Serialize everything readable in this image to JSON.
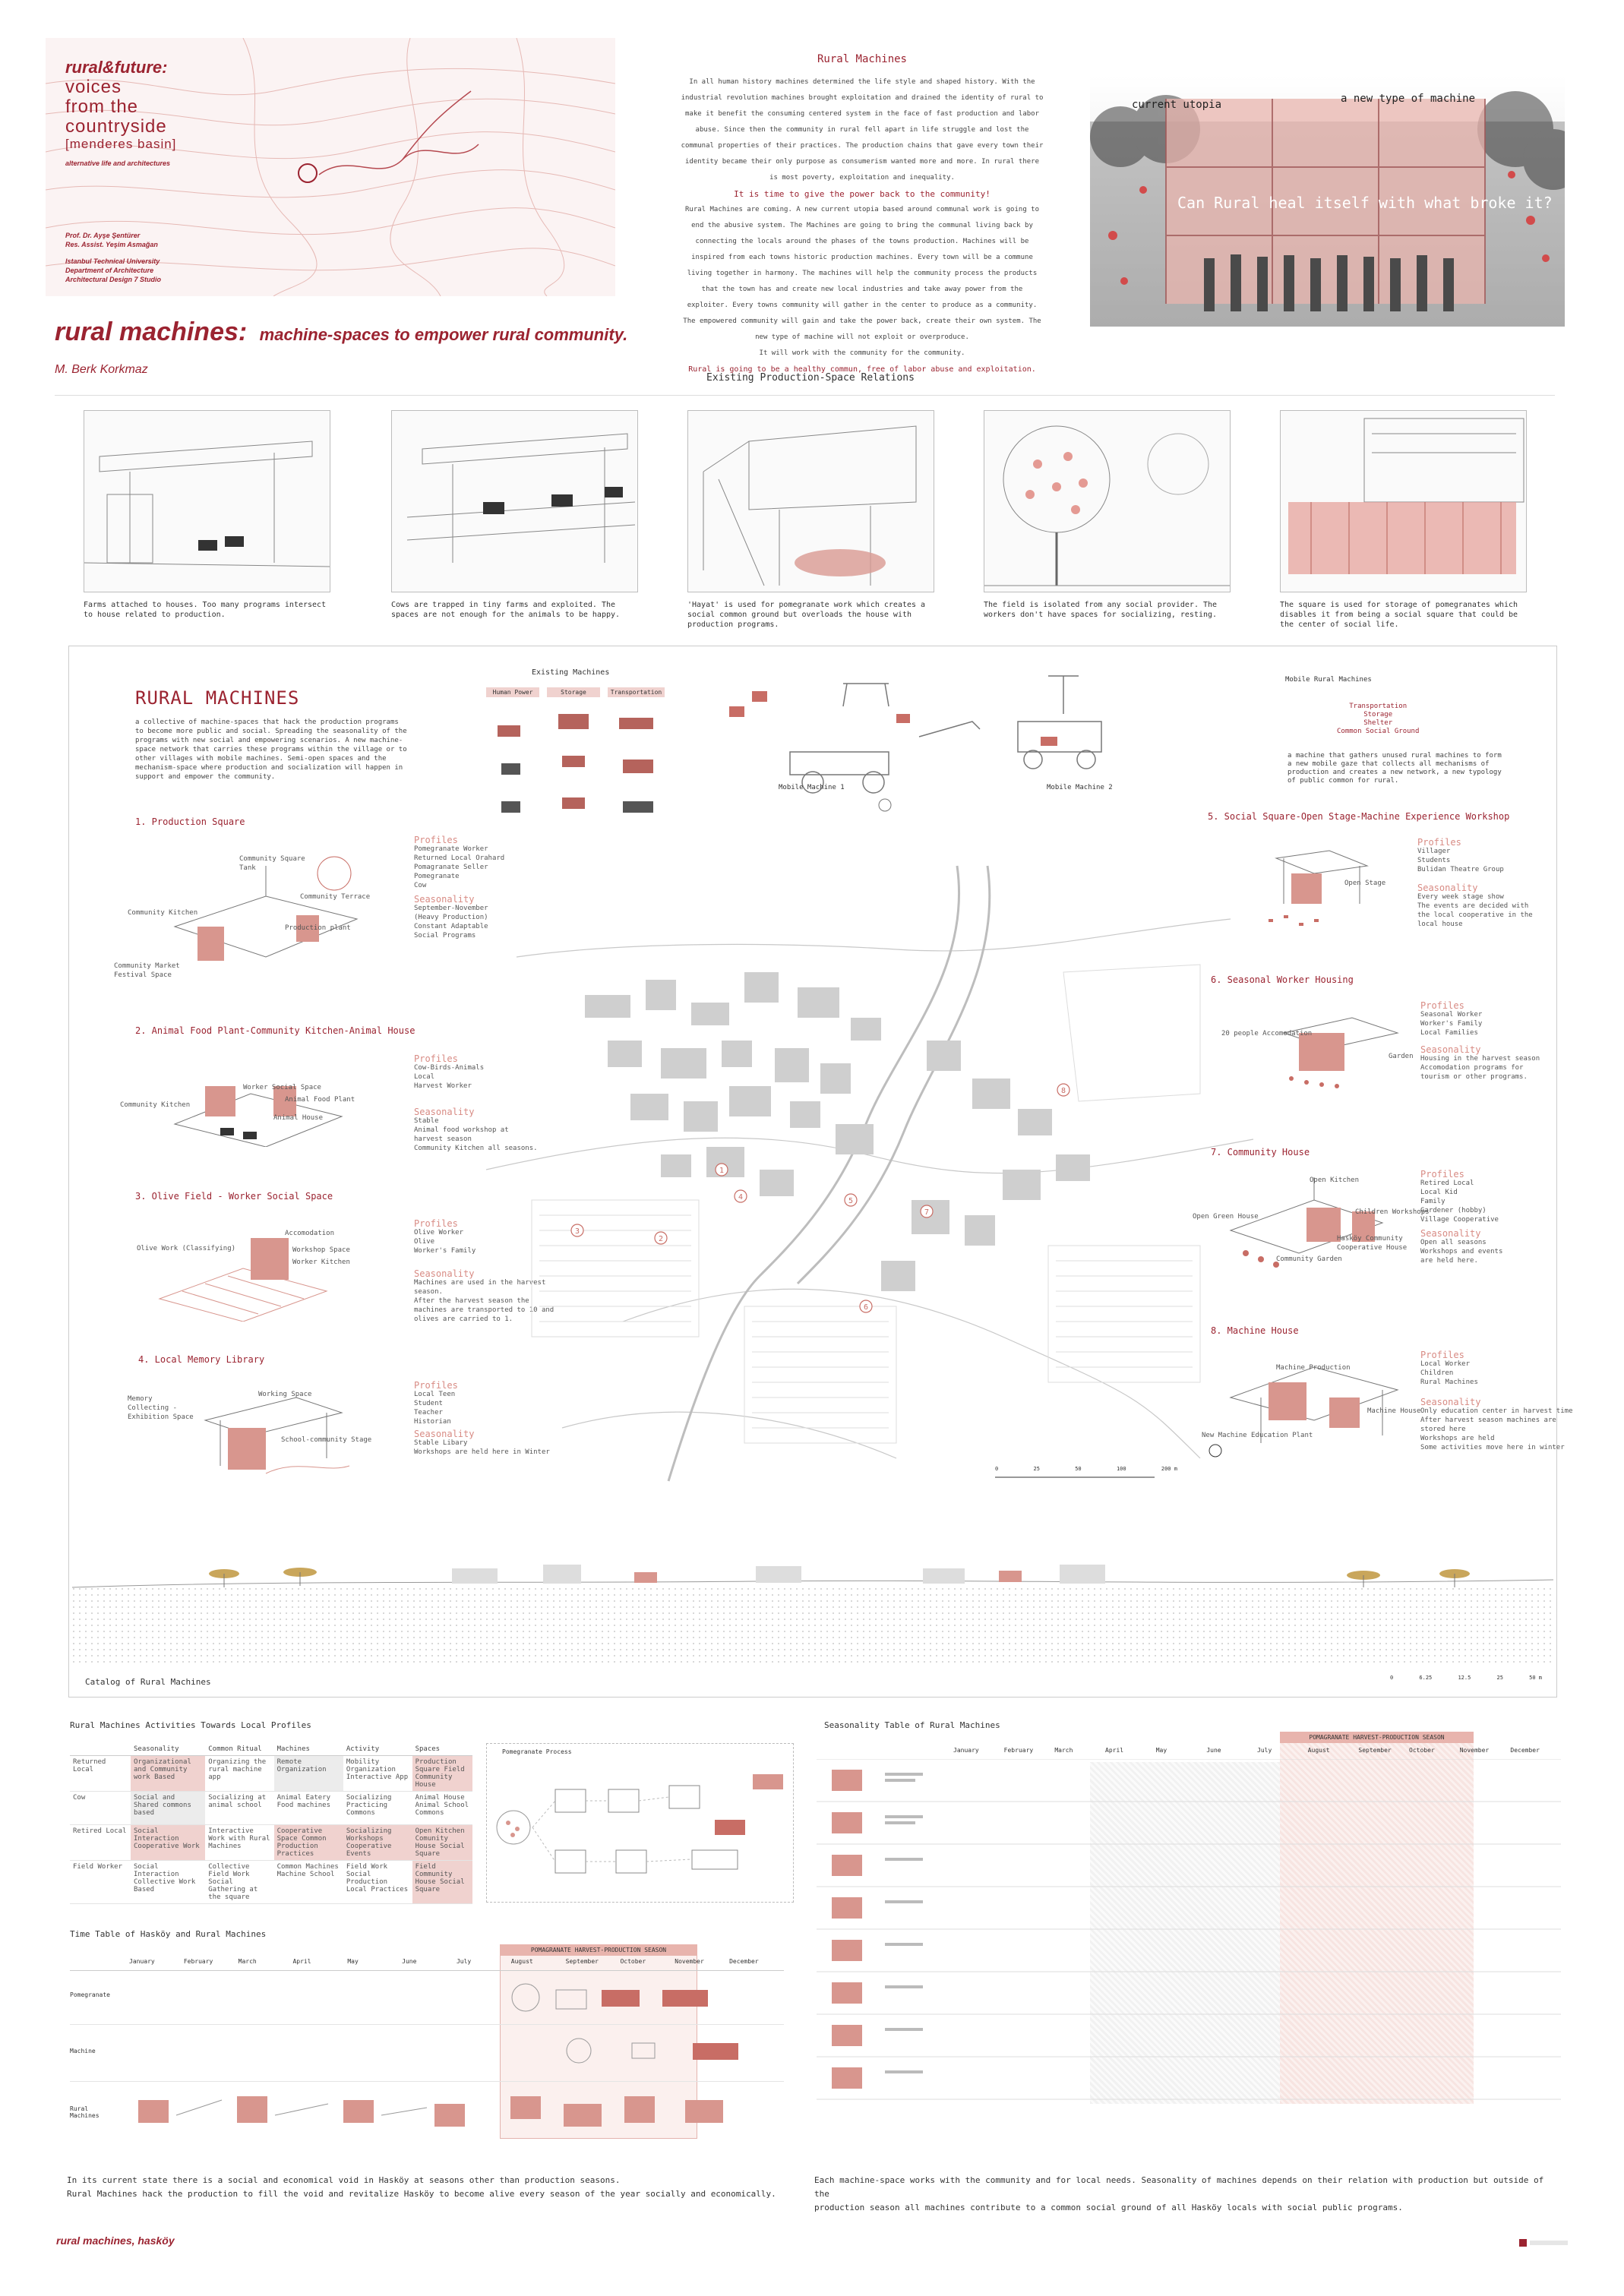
{
  "header": {
    "series_title": "rural&future:",
    "series_sub": [
      "voices",
      "from the",
      "countryside"
    ],
    "basin": "[menderes basin]",
    "series_tag": "alternative life and architectures",
    "staff": [
      "Prof. Dr. Ayşe Şentürer",
      "Res. Assist. Yeşim Asmağan"
    ],
    "institution": [
      "Istanbul Technical University",
      "Department of Architecture",
      "Architectural Design 7 Studio"
    ],
    "project_title": "rural machines:",
    "project_subtitle": "machine-spaces to empower rural community.",
    "author": "M. Berk Korkmaz"
  },
  "intro": {
    "title": "Rural Machines",
    "paragraphs": [
      "In all human history machines determined the life style and shaped history. With the industrial revolution machines brought exploitation and drained the identity of rural to make it benefit the consuming centered system in the face of fast production and labor abuse. Since then the community in rural fell apart in life struggle and lost the communal properties of their practices. The production chains that gave every town their identity became their only purpose as consumerism wanted more and more. In rural there is most poverty, exploitation and inequality.",
      "It is time to give the power back to the community!",
      "Rural Machines are coming. A new current utopia based around communal work is going to end the abusive system. The Machines are going to bring the communal living back by connecting the locals around the phases of the towns production. Machines will be inspired from each towns historic production machines. Every town will be a commune living together in harmony. The machines will help the community process the products that the town has and create new local industries and take away power from the exploiter. Every towns community will gather in the center to produce as a community. The empowered community will gain and take the power back, create their own system. The new type of machine will not exploit or overproduce.",
      "It will work with the community for the community.",
      "Rural is going to be a healthy commun, free of labor abuse and exploitation."
    ]
  },
  "collage": {
    "label_left": "current utopia",
    "label_right": "a new type of machine",
    "question": "Can Rural heal itself with what broke it?"
  },
  "relations": {
    "title": "Existing Production-Space Relations",
    "items": [
      {
        "caption": "Farms attached to houses. Too many programs intersect to house related to production."
      },
      {
        "caption": "Cows are trapped in tiny farms and exploited. The spaces are not enough for the animals to be happy."
      },
      {
        "caption": "'Hayat' is used for pomegranate work which creates a social common ground but overloads the house with production programs."
      },
      {
        "caption": "The field is isolated from any social provider. The workers don't have spaces for socializing, resting."
      },
      {
        "caption": "The square is used for storage of pomegranates which disables it from being a social square that could be the center of social life."
      }
    ]
  },
  "catalog": {
    "title": "RURAL MACHINES",
    "description": "a collective of machine-spaces that hack the production programs to become more public and social. Spreading the seasonality of the programs with new social and empowering scenarios. A new machine-space network that carries these programs within the village or to other villages with mobile machines. Semi-open spaces and the mechanism-space where production and socialization will happen in support and empower the community.",
    "existing_machines": {
      "title": "Existing Machines",
      "columns": [
        "Human Power",
        "Storage",
        "Transportation"
      ]
    },
    "mobile": {
      "title": "Mobile Rural Machines",
      "functions": [
        "Transportation",
        "Storage",
        "Shelter",
        "Common Social Ground"
      ],
      "machine1": "Mobile Machine 1",
      "machine2": "Mobile Machine 2",
      "description": "a machine that gathers unused rural machines to form a new mobile gaze that collects all mechanisms of production and creates a new network, a new typology of public common for rural."
    },
    "left_sections": [
      {
        "title": "1. Production Square",
        "labels": [
          "Community Square Tank",
          "Community Terrace",
          "Community Kitchen",
          "Production plant",
          "Community Market Festival Space"
        ],
        "profiles": [
          "Pomegranate Worker",
          "Returned Local Orahard",
          "Pomagranate Seller",
          "Pomegranate",
          "Cow"
        ],
        "seasonality": [
          "September-November",
          "(Heavy Production)",
          "Constant Adaptable",
          "Social Programs"
        ]
      },
      {
        "title": "2. Animal Food Plant-Community Kitchen-Animal House",
        "labels": [
          "Worker Social Space",
          "Animal Food Plant",
          "Community Kitchen",
          "Animal House"
        ],
        "profiles": [
          "Cow-Birds-Animals",
          "Local",
          "Harvest Worker"
        ],
        "seasonality": [
          "Stable",
          "Animal food workshop at",
          "harvest season",
          "Community Kitchen all seasons."
        ]
      },
      {
        "title": "3. Olive Field - Worker Social Space",
        "labels": [
          "Accomodation",
          "Workshop Space",
          "Olive Work (Classifying)",
          "Worker Kitchen"
        ],
        "profiles": [
          "Olive Worker",
          "Olive",
          "Worker's Family"
        ],
        "seasonality": [
          "Machines are used in the harvest",
          "season.",
          "After the harvest season the",
          "machines are transported to 10 and",
          "olives are carried to 1."
        ]
      },
      {
        "title": "4. Local Memory Library",
        "labels": [
          "Memory Collecting -Exhibition Space",
          "Working Space",
          "School-community Stage"
        ],
        "profiles": [
          "Local Teen",
          "Student",
          "Teacher",
          "Historian"
        ],
        "seasonality": [
          "Stable Libary",
          "Workshops are held here in Winter"
        ]
      }
    ],
    "right_sections": [
      {
        "title": "5. Social Square-Open Stage-Machine Experience Workshop",
        "labels": [
          "Open Stage"
        ],
        "profiles": [
          "Villager",
          "Students",
          "Bulidan Theatre Group"
        ],
        "seasonality": [
          "Every week stage show",
          "The events are decided with",
          "the local cooperative in the",
          "local house"
        ]
      },
      {
        "title": "6. Seasonal Worker Housing",
        "labels": [
          "20 people Accomodation",
          "Garden"
        ],
        "profiles": [
          "Seasonal Worker",
          "Worker's Family",
          "Local Families"
        ],
        "seasonality": [
          "Housing in the harvest season",
          "Accomodation programs for",
          "tourism or other programs."
        ]
      },
      {
        "title": "7. Community House",
        "labels": [
          "Open Kitchen",
          "Open Green House",
          "Children Workshops",
          "Hasköy Community Cooperative House",
          "Community Garden"
        ],
        "profiles": [
          "Retired Local",
          "Local Kid",
          "Family",
          "Gardener (hobby)",
          "Village Cooperative"
        ],
        "seasonality": [
          "Open all seasons",
          "Workshops and events",
          "are held here."
        ]
      },
      {
        "title": "8. Machine House",
        "labels": [
          "Machine Production",
          "Machine House",
          "New Machine Education Plant"
        ],
        "profiles": [
          "Local Worker",
          "Children",
          "Rural Machines"
        ],
        "seasonality": [
          "Only education center in harvest time",
          "After harvest season machines are",
          "stored here",
          "Workshops are held",
          "Some activities move here in winter"
        ]
      }
    ],
    "map_numbers": [
      "1",
      "2",
      "3",
      "4",
      "5",
      "6",
      "7",
      "8"
    ],
    "scale_ticks": [
      "0",
      "25",
      "50",
      "100",
      "200 m"
    ],
    "section_scale_ticks": [
      "0",
      "6.25",
      "12.5",
      "25",
      "50 m"
    ],
    "profiles_heading": "Profiles",
    "seasonality_heading": "Seasonality",
    "footer": "Catalog of Rural Machines"
  },
  "activities": {
    "title": "Rural Machines Activities Towards Local Profiles",
    "columns": [
      "Seasonality",
      "Common Ritual",
      "Machines",
      "Activity",
      "Spaces"
    ],
    "rows": [
      {
        "profile": "Returned Local",
        "cells": [
          "Organizational and Community work Based",
          "Organizing the rural machine app",
          "Remote Organization",
          "Mobility Organization Interactive App",
          "Production Square Field Community House"
        ]
      },
      {
        "profile": "Cow",
        "cells": [
          "Social and Shared commons based",
          "Socializing at animal school",
          "Animal Eatery Food machines",
          "Socializing Practicing Commons",
          "Animal House Animal School Commons"
        ]
      },
      {
        "profile": "Retired Local",
        "cells": [
          "Social Interaction Cooperative Work",
          "Interactive Work with Rural Machines",
          "Cooperative Space Common Production Practices",
          "Socializing Workshops Cooperative Events",
          "Open Kitchen Comunity House Social Square"
        ]
      },
      {
        "profile": "Field Worker",
        "cells": [
          "Social Interaction Collective Work Based",
          "Collective Field Work Social Gathering at the square",
          "Common Machines Machine School",
          "Field Work Social Production Local Practices",
          "Field Community House Social Square"
        ]
      }
    ],
    "process_title": "Pomegranate Process"
  },
  "timetable": {
    "title": "Time Table of Hasköy and Rural Machines",
    "months": [
      "January",
      "February",
      "March",
      "April",
      "May",
      "June",
      "July",
      "August",
      "September",
      "October",
      "November",
      "December"
    ],
    "season_label": "POMAGRANATE HARVEST-PRODUCTION SEASON",
    "rows": [
      "Pomegranate",
      "Machine",
      "Rural Machines"
    ]
  },
  "seasonality": {
    "title": "Seasonality Table of Rural Machines",
    "months": [
      "January",
      "February",
      "March",
      "April",
      "May",
      "June",
      "July",
      "August",
      "September",
      "October",
      "November",
      "December"
    ],
    "season_label": "POMAGRANATE HARVEST-PRODUCTION SEASON",
    "rows": 8
  },
  "conclusions": {
    "left": [
      "In its current state there is a social and economical void in Hasköy at seasons other than production seasons.",
      "Rural Machines hack the production to fill the void and revitalize Hasköy to become alive every season of the year socially and economically."
    ],
    "right": [
      "Each machine-space works with the community and for local needs. Seasonality of machines depends on their relation with production but outside of the",
      "production season all machines contribute to a common social ground of all Hasköy locals with social public programs."
    ]
  },
  "footer": {
    "label": "rural machines, hasköy"
  },
  "colors": {
    "accent": "#9b2330",
    "pink": "#e8b4ad",
    "grey": "#cfcfcf"
  }
}
